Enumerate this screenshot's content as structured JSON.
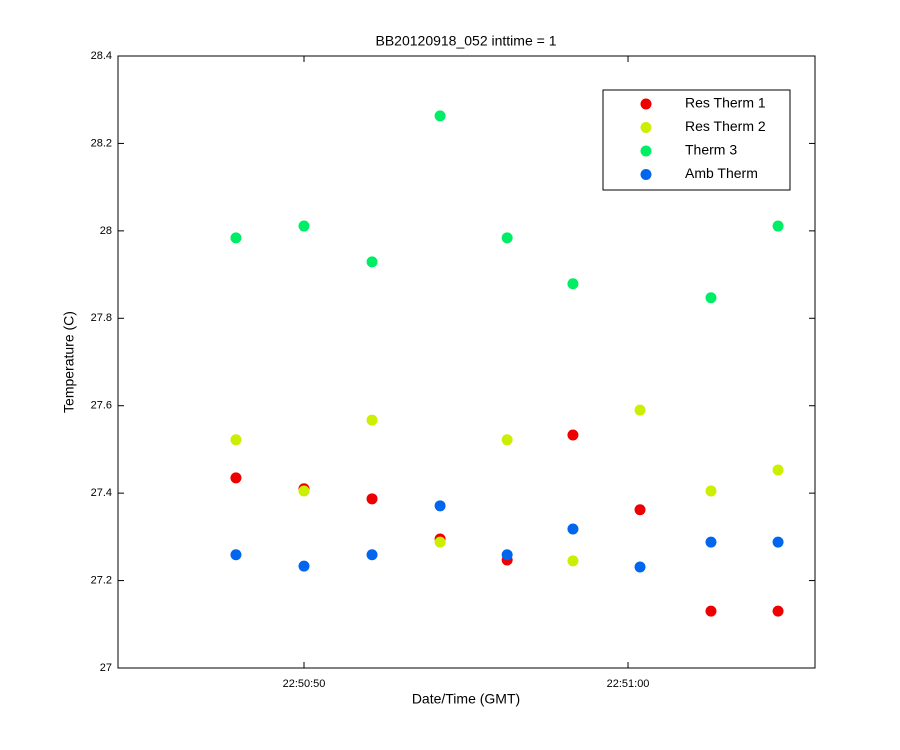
{
  "chart_data": {
    "type": "scatter",
    "title": "BB20120918_052 inttime = 1",
    "x_label": "Date/Time (GMT)",
    "y_label": "Temperature (C)",
    "x": [
      82247.9,
      82250.0,
      82252.1,
      82254.2,
      82256.27,
      82258.3,
      82260.37,
      82262.56,
      82264.63
    ],
    "series": [
      {
        "name": "Res Therm 1",
        "color": "#ee0000",
        "values": [
          27.435,
          27.41,
          27.387,
          27.295,
          27.247,
          27.533,
          27.362,
          27.13,
          27.13
        ]
      },
      {
        "name": "Res Therm 2",
        "color": "#ccee00",
        "values": [
          27.522,
          27.405,
          27.567,
          27.288,
          27.522,
          27.245,
          27.59,
          27.405,
          27.453
        ]
      },
      {
        "name": "Therm 3",
        "color": "#00ee66",
        "values": [
          27.984,
          28.011,
          27.929,
          28.263,
          27.984,
          27.879,
          null,
          27.847,
          28.011
        ]
      },
      {
        "name": "Amb Therm",
        "color": "#0066ee",
        "values": [
          27.259,
          27.233,
          27.259,
          27.371,
          27.259,
          27.318,
          27.231,
          27.288,
          27.288
        ]
      }
    ],
    "xlim": [
      82244.26,
      82265.77
    ],
    "xticks": [
      {
        "value": 82250,
        "label": "22:50:50"
      },
      {
        "value": 82260,
        "label": "22:51:00"
      }
    ],
    "ylim": [
      27,
      28.4
    ],
    "yticks": [
      27,
      27.2,
      27.4,
      27.6,
      27.8,
      28,
      28.2,
      28.4
    ],
    "grid": false,
    "legend": "northeast"
  }
}
